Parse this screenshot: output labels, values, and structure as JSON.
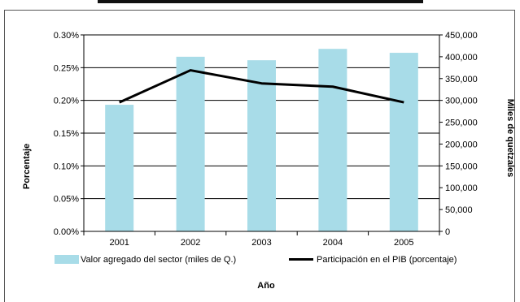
{
  "chart_data": {
    "type": "bar",
    "categories": [
      "2001",
      "2002",
      "2003",
      "2004",
      "2005"
    ],
    "series": [
      {
        "name": "Valor agregado del sector (miles de Q.)",
        "type": "bar",
        "axis": "right",
        "color": "#a8dce8",
        "values": [
          290000,
          400000,
          392000,
          418000,
          409000
        ]
      },
      {
        "name": "Participación en el PIB (porcentaje)",
        "type": "line",
        "axis": "left",
        "color": "#000000",
        "values": [
          0.00197,
          0.00246,
          0.00226,
          0.00221,
          0.00197
        ]
      }
    ],
    "xlabel": "Año",
    "ylabel_left": "Porcentaje",
    "ylabel_right": "Miles de quetzales",
    "ylim_left": [
      0,
      0.003
    ],
    "ylim_right": [
      0,
      450000
    ],
    "yticks_left": [
      "0.00%",
      "0.05%",
      "0.10%",
      "0.15%",
      "0.20%",
      "0.25%",
      "0.30%"
    ],
    "yticks_right": [
      "0",
      "50,000",
      "100,000",
      "150,000",
      "200,000",
      "250,000",
      "300,000",
      "350,000",
      "400,000",
      "450,000"
    ],
    "grid": true,
    "legend_position": "bottom"
  }
}
